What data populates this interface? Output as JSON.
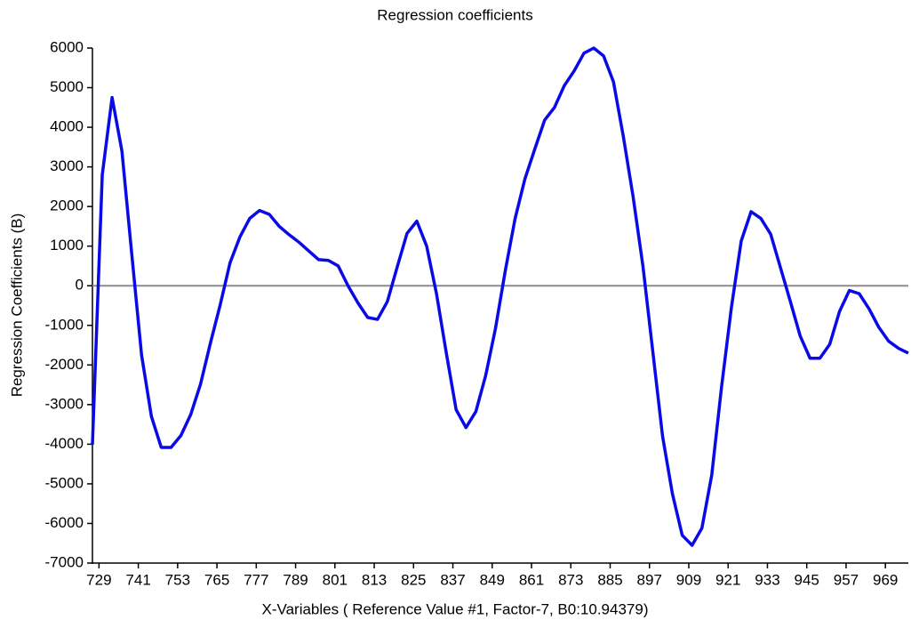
{
  "chart_data": {
    "type": "line",
    "title": "Regression coefficients",
    "x_label": "X-Variables ( Reference Value #1, Factor-7, B0:10.94379)",
    "y_label": "Regression Coefficients (B)",
    "color": "#0a0ae6",
    "reference_line": 0,
    "reference_color": "#8c8c8c",
    "xlim": [
      727,
      976
    ],
    "ylim": [
      -7000,
      6000
    ],
    "xticks": [
      729,
      741,
      753,
      765,
      777,
      789,
      801,
      813,
      825,
      837,
      849,
      861,
      873,
      885,
      897,
      909,
      921,
      933,
      945,
      957,
      969
    ],
    "yticks": [
      -7000,
      -6000,
      -5000,
      -4000,
      -3000,
      -2000,
      -1000,
      0,
      1000,
      2000,
      3000,
      4000,
      5000,
      6000
    ],
    "x": [
      727,
      730,
      733,
      736,
      739,
      742,
      745,
      748,
      751,
      754,
      757,
      760,
      763,
      766,
      769,
      772,
      775,
      778,
      781,
      784,
      787,
      790,
      793,
      796,
      799,
      802,
      805,
      808,
      811,
      814,
      817,
      820,
      823,
      826,
      829,
      832,
      835,
      838,
      841,
      844,
      847,
      850,
      853,
      856,
      859,
      862,
      865,
      868,
      871,
      874,
      877,
      880,
      883,
      886,
      889,
      892,
      895,
      898,
      901,
      904,
      907,
      910,
      913,
      916,
      919,
      922,
      925,
      928,
      931,
      934,
      937,
      940,
      943,
      946,
      949,
      952,
      955,
      958,
      961,
      964,
      967,
      970,
      973,
      976
    ],
    "values": [
      -4010,
      2800,
      4750,
      3400,
      800,
      -1750,
      -3300,
      -4080,
      -4080,
      -3780,
      -3250,
      -2480,
      -1450,
      -480,
      580,
      1230,
      1700,
      1900,
      1800,
      1500,
      1290,
      1100,
      880,
      660,
      640,
      500,
      0,
      -430,
      -800,
      -850,
      -400,
      470,
      1320,
      1630,
      1000,
      -200,
      -1700,
      -3130,
      -3580,
      -3180,
      -2270,
      -1080,
      380,
      1700,
      2700,
      3450,
      4180,
      4500,
      5050,
      5420,
      5870,
      6000,
      5800,
      5150,
      3780,
      2250,
      500,
      -1650,
      -3800,
      -5250,
      -6300,
      -6550,
      -6120,
      -4780,
      -2550,
      -550,
      1130,
      1870,
      1700,
      1300,
      450,
      -400,
      -1270,
      -1830,
      -1830,
      -1480,
      -650,
      -120,
      -200,
      -580,
      -1050,
      -1400,
      -1580,
      -1700
    ]
  }
}
